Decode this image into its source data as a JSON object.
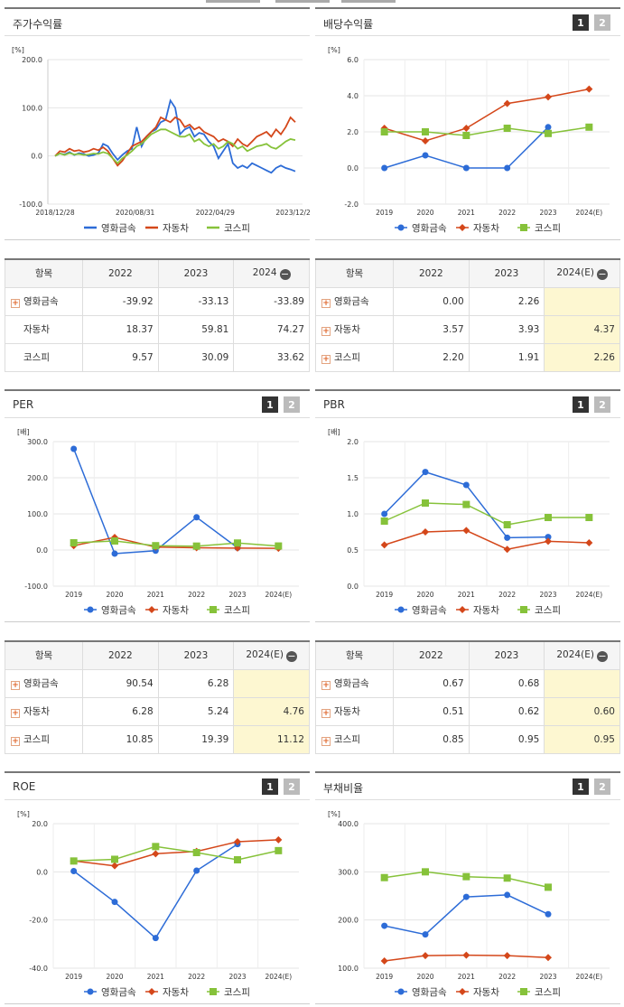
{
  "colors": {
    "metal": "#2d6cd7",
    "auto": "#d4471a",
    "kospi": "#86c23a"
  },
  "legend": [
    "영화금속",
    "자동차",
    "코스피"
  ],
  "page_buttons": [
    "1",
    "2"
  ],
  "panels": {
    "stock": {
      "title": "주가수익률"
    },
    "div": {
      "title": "배당수익률"
    },
    "per": {
      "title": "PER"
    },
    "pbr": {
      "title": "PBR"
    },
    "roe": {
      "title": "ROE"
    },
    "debt": {
      "title": "부채비율"
    }
  },
  "tables": {
    "stock": {
      "head": [
        "항목",
        "2022",
        "2023",
        "2024"
      ],
      "rows": [
        {
          "name": "영화금속",
          "expand": true,
          "values": [
            "-39.92",
            "-33.13",
            "-33.89"
          ]
        },
        {
          "name": "자동차",
          "expand": false,
          "values": [
            "18.37",
            "59.81",
            "74.27"
          ]
        },
        {
          "name": "코스피",
          "expand": false,
          "values": [
            "9.57",
            "30.09",
            "33.62"
          ]
        }
      ]
    },
    "div": {
      "head": [
        "항목",
        "2022",
        "2023",
        "2024(E)"
      ],
      "rows": [
        {
          "name": "영화금속",
          "expand": true,
          "values": [
            "0.00",
            "2.26",
            ""
          ]
        },
        {
          "name": "자동차",
          "expand": true,
          "values": [
            "3.57",
            "3.93",
            "4.37"
          ]
        },
        {
          "name": "코스피",
          "expand": true,
          "values": [
            "2.20",
            "1.91",
            "2.26"
          ]
        }
      ]
    },
    "per": {
      "head": [
        "항목",
        "2022",
        "2023",
        "2024(E)"
      ],
      "rows": [
        {
          "name": "영화금속",
          "expand": true,
          "values": [
            "90.54",
            "6.28",
            ""
          ]
        },
        {
          "name": "자동차",
          "expand": true,
          "values": [
            "6.28",
            "5.24",
            "4.76"
          ]
        },
        {
          "name": "코스피",
          "expand": true,
          "values": [
            "10.85",
            "19.39",
            "11.12"
          ]
        }
      ]
    },
    "pbr": {
      "head": [
        "항목",
        "2022",
        "2023",
        "2024(E)"
      ],
      "rows": [
        {
          "name": "영화금속",
          "expand": true,
          "values": [
            "0.67",
            "0.68",
            ""
          ]
        },
        {
          "name": "자동차",
          "expand": true,
          "values": [
            "0.51",
            "0.62",
            "0.60"
          ]
        },
        {
          "name": "코스피",
          "expand": true,
          "values": [
            "0.85",
            "0.95",
            "0.95"
          ]
        }
      ]
    }
  },
  "chart_data": [
    {
      "id": "stock",
      "type": "line",
      "title": "주가수익률",
      "ylabel": "[%]",
      "ylim": [
        -100,
        200
      ],
      "yticks": [
        "200.0",
        "100.0",
        "0.0",
        "-100.0"
      ],
      "xtick_labels": [
        "2018/12/28",
        "2020/08/31",
        "2022/04/29",
        "2023/12/28"
      ],
      "x": [
        0,
        0.02,
        0.04,
        0.06,
        0.08,
        0.1,
        0.12,
        0.14,
        0.16,
        0.18,
        0.2,
        0.22,
        0.24,
        0.26,
        0.28,
        0.3,
        0.32,
        0.34,
        0.36,
        0.38,
        0.4,
        0.42,
        0.44,
        0.46,
        0.48,
        0.5,
        0.52,
        0.54,
        0.56,
        0.58,
        0.6,
        0.62,
        0.64,
        0.66,
        0.68,
        0.7,
        0.72,
        0.74,
        0.76,
        0.78,
        0.8,
        0.82,
        0.84,
        0.86,
        0.88,
        0.9,
        0.92,
        0.94,
        0.96,
        0.98,
        1.0
      ],
      "series": [
        {
          "name": "영화금속",
          "values": [
            0,
            5,
            3,
            8,
            2,
            6,
            4,
            0,
            2,
            6,
            25,
            20,
            5,
            -8,
            2,
            10,
            15,
            60,
            20,
            40,
            50,
            55,
            70,
            75,
            115,
            100,
            45,
            55,
            60,
            40,
            48,
            45,
            30,
            20,
            -5,
            10,
            25,
            -15,
            -25,
            -20,
            -25,
            -15,
            -20,
            -25,
            -30,
            -35,
            -25,
            -20,
            -25,
            -28,
            -32
          ]
        },
        {
          "name": "자동차",
          "values": [
            0,
            10,
            8,
            15,
            10,
            12,
            8,
            10,
            15,
            12,
            18,
            10,
            -5,
            -20,
            -10,
            5,
            20,
            25,
            30,
            40,
            50,
            60,
            80,
            75,
            70,
            80,
            75,
            60,
            65,
            55,
            60,
            50,
            45,
            40,
            30,
            35,
            30,
            20,
            35,
            25,
            20,
            30,
            40,
            45,
            50,
            40,
            55,
            45,
            60,
            80,
            70
          ]
        },
        {
          "name": "코스피",
          "values": [
            0,
            5,
            2,
            6,
            3,
            4,
            2,
            3,
            5,
            4,
            8,
            5,
            -5,
            -15,
            -5,
            2,
            10,
            20,
            25,
            35,
            45,
            50,
            55,
            55,
            50,
            45,
            40,
            40,
            45,
            30,
            35,
            25,
            20,
            25,
            15,
            20,
            30,
            25,
            15,
            20,
            10,
            15,
            20,
            22,
            25,
            18,
            15,
            22,
            30,
            35,
            33
          ]
        }
      ]
    },
    {
      "id": "div",
      "type": "line",
      "title": "배당수익률",
      "ylabel": "[%]",
      "ylim": [
        -2,
        6
      ],
      "yticks": [
        "6.0",
        "4.0",
        "2.0",
        "0.0",
        "-2.0"
      ],
      "categories": [
        "2019",
        "2020",
        "2021",
        "2022",
        "2023",
        "2024(E)"
      ],
      "series": [
        {
          "name": "영화금속",
          "values": [
            0.0,
            0.7,
            0.0,
            0.0,
            2.26,
            null
          ]
        },
        {
          "name": "자동차",
          "values": [
            2.2,
            1.5,
            2.2,
            3.57,
            3.93,
            4.37
          ]
        },
        {
          "name": "코스피",
          "values": [
            2.0,
            2.0,
            1.8,
            2.2,
            1.91,
            2.26
          ]
        }
      ]
    },
    {
      "id": "per",
      "type": "line",
      "title": "PER",
      "ylabel": "[배]",
      "ylim": [
        -100,
        300
      ],
      "yticks": [
        "300.0",
        "200.0",
        "100.0",
        "0.0",
        "-100.0"
      ],
      "categories": [
        "2019",
        "2020",
        "2021",
        "2022",
        "2023",
        "2024(E)"
      ],
      "series": [
        {
          "name": "영화금속",
          "values": [
            280,
            -10,
            -2,
            90.54,
            6.28,
            null
          ]
        },
        {
          "name": "자동차",
          "values": [
            12,
            35,
            8,
            6.28,
            5.24,
            4.76
          ]
        },
        {
          "name": "코스피",
          "values": [
            20,
            25,
            12,
            10.85,
            19.39,
            11.12
          ]
        }
      ]
    },
    {
      "id": "pbr",
      "type": "line",
      "title": "PBR",
      "ylabel": "[배]",
      "ylim": [
        0,
        2
      ],
      "yticks": [
        "2.0",
        "1.5",
        "1.0",
        "0.5",
        "0.0"
      ],
      "categories": [
        "2019",
        "2020",
        "2021",
        "2022",
        "2023",
        "2024(E)"
      ],
      "series": [
        {
          "name": "영화금속",
          "values": [
            1.0,
            1.58,
            1.4,
            0.67,
            0.68,
            null
          ]
        },
        {
          "name": "자동차",
          "values": [
            0.57,
            0.75,
            0.77,
            0.51,
            0.62,
            0.6
          ]
        },
        {
          "name": "코스피",
          "values": [
            0.9,
            1.15,
            1.13,
            0.85,
            0.95,
            0.95
          ]
        }
      ]
    },
    {
      "id": "roe",
      "type": "line",
      "title": "ROE",
      "ylabel": "[%]",
      "ylim": [
        -40,
        20
      ],
      "yticks": [
        "20.0",
        "0.0",
        "-20.0",
        "-40.0"
      ],
      "categories": [
        "2019",
        "2020",
        "2021",
        "2022",
        "2023",
        "2024(E)"
      ],
      "series": [
        {
          "name": "영화금속",
          "values": [
            0.3,
            -12.5,
            -27.5,
            0.5,
            11.5,
            null
          ]
        },
        {
          "name": "자동차",
          "values": [
            4.5,
            2.5,
            7.5,
            8.5,
            12.5,
            13.3
          ]
        },
        {
          "name": "코스피",
          "values": [
            4.5,
            5.2,
            10.5,
            8.0,
            5.0,
            8.8
          ]
        }
      ]
    },
    {
      "id": "debt",
      "type": "line",
      "title": "부채비율",
      "ylabel": "[%]",
      "ylim": [
        100,
        400
      ],
      "yticks": [
        "400.0",
        "300.0",
        "200.0",
        "100.0"
      ],
      "categories": [
        "2019",
        "2020",
        "2021",
        "2022",
        "2023",
        "2024(E)"
      ],
      "series": [
        {
          "name": "영화금속",
          "values": [
            188,
            170,
            248,
            252,
            212,
            null
          ]
        },
        {
          "name": "자동차",
          "values": [
            115,
            126,
            127,
            126,
            122,
            null
          ]
        },
        {
          "name": "코스피",
          "values": [
            288,
            300,
            290,
            287,
            268,
            null
          ]
        }
      ]
    }
  ]
}
